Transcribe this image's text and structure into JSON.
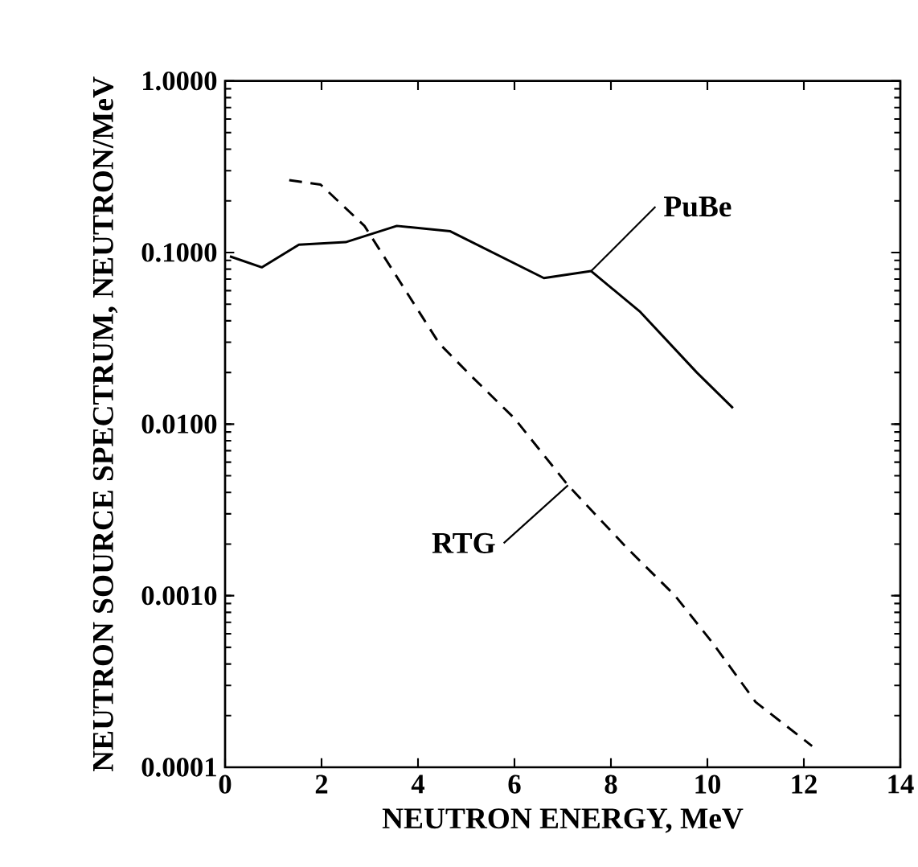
{
  "chart_data": {
    "type": "line",
    "xlabel": "NEUTRON ENERGY, MeV",
    "ylabel": "NEUTRON SOURCE SPECTRUM, NEUTRON/MeV",
    "log": "y",
    "grid": false,
    "legend": false,
    "marker": "none",
    "xlim": [
      0,
      14
    ],
    "xticks": [
      0,
      2,
      4,
      6,
      8,
      10,
      12,
      14
    ],
    "ylim": [
      0.0001,
      1
    ],
    "yticks": [
      {
        "value": 0.0001,
        "label": "0.0001"
      },
      {
        "value": 0.001,
        "label": "0.0010"
      },
      {
        "value": 0.01,
        "label": "0.0100"
      },
      {
        "value": 0.1,
        "label": "0.1000"
      },
      {
        "value": 1,
        "label": "1.0000"
      }
    ],
    "series": [
      {
        "name": "PuBe",
        "color": "#000000",
        "line_style": "solid",
        "x": [
          0.1,
          0.76,
          1.53,
          2.5,
          3.56,
          4.67,
          6.61,
          7.59,
          8.61,
          9.78,
          10.53
        ],
        "values": [
          0.095,
          0.082,
          0.111,
          0.115,
          0.143,
          0.133,
          0.071,
          0.078,
          0.045,
          0.02,
          0.0124
        ]
      },
      {
        "name": "RTG",
        "color": "#000000",
        "line_style": "dashed",
        "x": [
          1.33,
          1.98,
          2.89,
          4.44,
          5.11,
          6.0,
          7.11,
          8.33,
          9.33,
          10.11,
          11.0,
          12.17
        ],
        "values": [
          0.264,
          0.249,
          0.143,
          0.0295,
          0.019,
          0.0108,
          0.0044,
          0.0019,
          0.001,
          0.00053,
          0.00024,
          0.000133
        ]
      }
    ]
  }
}
